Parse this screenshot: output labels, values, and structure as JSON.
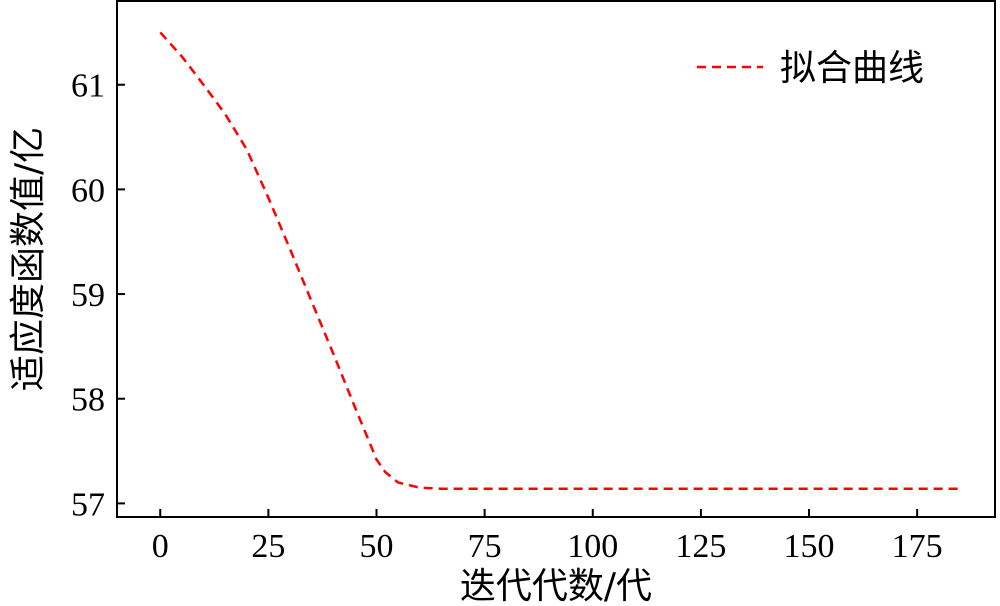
{
  "chart_data": {
    "type": "line",
    "title": "",
    "xlabel": "迭代代数/代",
    "ylabel": "适应度函数值/亿",
    "xlim": [
      -10,
      193
    ],
    "ylim": [
      56.87,
      61.8
    ],
    "xticks": [
      0,
      25,
      50,
      75,
      100,
      125,
      150,
      175
    ],
    "yticks": [
      57,
      58,
      59,
      60,
      61
    ],
    "grid": false,
    "legend_position": "top-right",
    "series": [
      {
        "name": "拟合曲线",
        "color": "#ff0000",
        "style": "dashed",
        "x": [
          0,
          5,
          10,
          15,
          19,
          20,
          25,
          30,
          35,
          40,
          45,
          50,
          52,
          55,
          60,
          65,
          70,
          80,
          100,
          125,
          150,
          175,
          185
        ],
        "y": [
          61.5,
          61.27,
          61.0,
          60.72,
          60.45,
          60.38,
          59.92,
          59.43,
          58.93,
          58.43,
          57.92,
          57.42,
          57.3,
          57.2,
          57.15,
          57.14,
          57.14,
          57.14,
          57.14,
          57.14,
          57.14,
          57.14,
          57.14
        ]
      }
    ]
  }
}
